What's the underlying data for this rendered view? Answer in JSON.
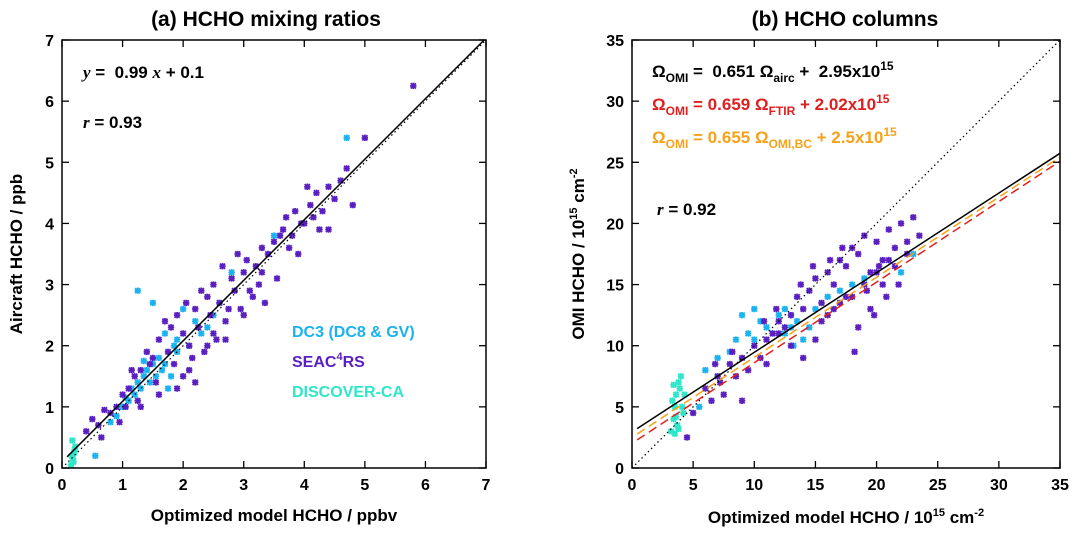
{
  "colors": {
    "seac4rs": "#5a1fc0",
    "dc3": "#1ab2f0",
    "discover_ca": "#2ee6c8",
    "fit_black": "#000000",
    "fit_ftir": "#e02020",
    "fit_omi_bc": "#f5a21a"
  },
  "chart_data": [
    {
      "type": "scatter",
      "title": "(a) HCHO mixing ratios",
      "xlabel": "Optimized model HCHO / ppbv",
      "ylabel": "Aircraft HCHO / ppb",
      "xlim": [
        0,
        7
      ],
      "ylim": [
        0,
        7
      ],
      "xticks": [
        "0",
        "1",
        "2",
        "3",
        "4",
        "5",
        "6",
        "7"
      ],
      "yticks": [
        "0",
        "1",
        "2",
        "3",
        "4",
        "5",
        "6",
        "7"
      ],
      "fit_text": {
        "y": "y",
        "eq": " =  0.99 ",
        "x": "x",
        "tail": " + 0.1"
      },
      "r_text": {
        "r": "r",
        "val": " = 0.93"
      },
      "fit_line": {
        "slope": 0.99,
        "intercept": 0.1
      },
      "one_to_one": true,
      "legend": [
        {
          "label": "DC3 (DC8 & GV)",
          "color_key": "dc3"
        },
        {
          "label_main": "SEAC",
          "label_sup": "4",
          "label_tail": "RS",
          "color_key": "seac4rs"
        },
        {
          "label": "DISCOVER-CA",
          "color_key": "discover_ca"
        }
      ],
      "series": [
        {
          "name": "DC3 (DC8 & GV)",
          "color_key": "dc3",
          "x": [
            0.55,
            0.8,
            0.9,
            1.0,
            1.1,
            1.15,
            1.2,
            1.25,
            1.3,
            1.35,
            1.4,
            1.45,
            1.5,
            1.55,
            1.6,
            1.65,
            1.7,
            1.75,
            1.8,
            1.85,
            1.9,
            2.0,
            2.1,
            2.2,
            2.3,
            2.4,
            2.5,
            1.25,
            1.5,
            1.7,
            1.9,
            2.6,
            2.8,
            3.5,
            4.7,
            1.05,
            1.35
          ],
          "y": [
            0.2,
            0.75,
            0.85,
            1.0,
            1.1,
            1.3,
            1.2,
            1.4,
            1.3,
            1.5,
            1.6,
            1.4,
            1.7,
            1.5,
            1.8,
            1.6,
            1.7,
            1.3,
            1.5,
            2.0,
            2.1,
            2.6,
            2.0,
            2.4,
            2.2,
            2.3,
            2.5,
            2.9,
            2.7,
            2.2,
            1.9,
            2.7,
            3.2,
            3.8,
            5.4,
            1.15,
            1.75
          ]
        },
        {
          "name": "SEAC4RS",
          "color_key": "seac4rs",
          "x": [
            0.4,
            0.5,
            0.6,
            0.7,
            0.8,
            0.9,
            1.0,
            1.05,
            1.1,
            1.2,
            1.25,
            1.3,
            1.4,
            1.5,
            1.6,
            1.7,
            1.75,
            1.8,
            1.9,
            2.0,
            2.05,
            2.1,
            2.2,
            2.25,
            2.3,
            2.4,
            2.45,
            2.5,
            2.6,
            2.65,
            2.7,
            2.8,
            2.85,
            2.9,
            3.0,
            3.05,
            3.1,
            3.2,
            3.25,
            3.3,
            3.4,
            3.5,
            3.6,
            3.65,
            3.7,
            3.8,
            3.85,
            3.9,
            4.0,
            4.1,
            4.15,
            4.2,
            4.3,
            4.4,
            4.5,
            4.6,
            4.7,
            4.8,
            5.0,
            5.8,
            0.65,
            0.95,
            1.15,
            1.45,
            1.55,
            1.85,
            2.15,
            2.35,
            2.55,
            2.75,
            2.95,
            3.15,
            3.35,
            3.55,
            3.75,
            3.95,
            4.25,
            4.05,
            2.0,
            2.4,
            2.1,
            1.6,
            3.0,
            3.3,
            2.7,
            1.3,
            1.9,
            2.5,
            2.2,
            4.4
          ],
          "y": [
            0.6,
            0.8,
            0.7,
            0.95,
            0.9,
            1.0,
            1.2,
            1.0,
            1.3,
            1.5,
            1.1,
            1.6,
            1.9,
            1.8,
            2.1,
            2.4,
            1.9,
            2.3,
            2.5,
            2.2,
            2.7,
            2.0,
            2.6,
            2.3,
            2.9,
            2.8,
            2.5,
            3.0,
            2.7,
            3.3,
            2.4,
            3.1,
            2.9,
            3.5,
            3.2,
            3.4,
            2.9,
            3.3,
            3.0,
            3.6,
            3.5,
            3.7,
            3.8,
            3.9,
            4.1,
            3.8,
            4.2,
            3.5,
            4.0,
            4.3,
            4.1,
            4.5,
            4.2,
            4.6,
            4.4,
            4.7,
            4.9,
            4.3,
            5.4,
            6.25,
            0.5,
            0.75,
            1.6,
            1.7,
            1.4,
            1.7,
            1.8,
            1.9,
            2.1,
            2.6,
            2.6,
            2.8,
            2.7,
            3.1,
            3.6,
            4.0,
            3.9,
            4.6,
            1.5,
            2.0,
            1.6,
            1.2,
            2.5,
            3.2,
            2.1,
            1.0,
            1.3,
            2.2,
            1.4,
            3.9
          ]
        },
        {
          "name": "DISCOVER-CA",
          "color_key": "discover_ca",
          "x": [
            0.15,
            0.18,
            0.2,
            0.22,
            0.17,
            0.19,
            0.21,
            0.16
          ],
          "y": [
            0.05,
            0.15,
            0.25,
            0.35,
            0.45,
            0.1,
            0.3,
            0.2
          ]
        }
      ]
    },
    {
      "type": "scatter",
      "title": "(b) HCHO columns",
      "xlabel_main": "Optimized model HCHO / 10",
      "xlabel_sup": "15",
      "xlabel_mid": " cm",
      "xlabel_sup2": "-2",
      "ylabel_main": "OMI HCHO / 10",
      "ylabel_sup": "15",
      "ylabel_mid": " cm",
      "ylabel_sup2": "-2",
      "xlim": [
        0,
        35
      ],
      "ylim": [
        0,
        35
      ],
      "xticks": [
        "0",
        "5",
        "10",
        "15",
        "20",
        "25",
        "30",
        "35"
      ],
      "yticks": [
        "0",
        "5",
        "10",
        "15",
        "20",
        "25",
        "30",
        "35"
      ],
      "fits": [
        {
          "omega": "Ω",
          "sub1": "OMI",
          "eq": " =  0.651 ",
          "omega2": "Ω",
          "sub2": "airc",
          "tail": " +  2.95x10",
          "sup": "15",
          "color_key": "fit_black",
          "slope": 0.651,
          "intercept": 2.95,
          "style": "solid"
        },
        {
          "omega": "Ω",
          "sub1": "OMI",
          "eq": " = 0.659 ",
          "omega2": "Ω",
          "sub2": "FTIR",
          "tail": " + 2.02x10",
          "sup": "15",
          "color_key": "fit_ftir",
          "slope": 0.659,
          "intercept": 2.02,
          "style": "dashed"
        },
        {
          "omega": "Ω",
          "sub1": "OMI",
          "eq": " = 0.655 ",
          "omega2": "Ω",
          "sub2": "OMI,BC",
          "tail": " + 2.5x10",
          "sup": "15",
          "color_key": "fit_omi_bc",
          "slope": 0.655,
          "intercept": 2.5,
          "style": "dashed"
        }
      ],
      "r_text": {
        "r": "r",
        "val": " = 0.92"
      },
      "one_to_one": true,
      "series": [
        {
          "name": "DC3 (DC8 & GV)",
          "color_key": "dc3",
          "x": [
            5.5,
            6.0,
            7.0,
            8.0,
            9.0,
            9.5,
            10.0,
            10.5,
            11.0,
            11.5,
            12.0,
            12.5,
            13.0,
            13.5,
            14.0,
            14.5,
            15.0,
            16.0,
            17.0,
            18.0,
            19.0,
            8.5,
            10.0,
            13.0,
            22.0,
            23.0,
            12.5,
            13.2
          ],
          "y": [
            5.0,
            8.0,
            9.0,
            9.5,
            12.5,
            11.0,
            10.5,
            12.0,
            11.5,
            11.0,
            12.5,
            13.0,
            11.5,
            12.0,
            10.5,
            11.5,
            13.0,
            14.0,
            14.5,
            15.0,
            15.5,
            10.5,
            13.0,
            12.5,
            16.0,
            17.5,
            11.0,
            10.0
          ]
        },
        {
          "name": "SEAC4RS",
          "color_key": "seac4rs",
          "x": [
            5.0,
            6.0,
            6.5,
            7.0,
            7.5,
            8.0,
            8.5,
            9.0,
            9.5,
            10.0,
            10.5,
            11.0,
            11.5,
            12.0,
            12.5,
            13.0,
            13.5,
            14.0,
            14.5,
            15.0,
            15.5,
            16.0,
            16.5,
            17.0,
            17.5,
            18.0,
            18.5,
            19.0,
            19.5,
            20.0,
            20.5,
            21.0,
            21.5,
            22.0,
            22.5,
            23.0,
            23.5,
            4.5,
            16.0,
            17.0,
            18.0,
            19.0,
            20.0,
            21.0,
            18.5,
            19.5,
            17.5,
            16.5,
            15.5,
            20.5,
            21.5,
            22.5,
            14.0,
            13.0,
            9.0,
            11.0,
            12.0,
            15.0,
            18.2,
            19.8,
            20.8,
            21.8,
            17.2,
            16.2,
            14.8,
            13.8,
            11.8,
            10.8,
            8.2,
            7.2,
            6.8,
            19.2,
            20.2
          ],
          "y": [
            4.5,
            6.5,
            5.5,
            7.5,
            6.0,
            8.5,
            7.5,
            9.0,
            8.0,
            10.0,
            9.0,
            10.5,
            11.0,
            12.0,
            11.5,
            12.5,
            14.0,
            13.0,
            14.5,
            15.5,
            13.5,
            16.0,
            15.0,
            17.0,
            16.5,
            18.0,
            17.5,
            19.0,
            16.0,
            18.5,
            17.0,
            19.5,
            18.0,
            20.0,
            17.5,
            20.5,
            19.0,
            2.5,
            12.5,
            13.5,
            14.0,
            15.0,
            16.0,
            17.0,
            11.5,
            13.0,
            14.0,
            13.0,
            12.0,
            15.0,
            16.5,
            18.5,
            9.0,
            10.0,
            5.5,
            8.5,
            11.0,
            10.5,
            9.5,
            12.5,
            14.0,
            15.0,
            18.0,
            17.0,
            16.5,
            15.0,
            13.0,
            12.0,
            9.5,
            7.0,
            8.5,
            14.5,
            16.5
          ]
        },
        {
          "name": "DISCOVER-CA",
          "color_key": "discover_ca",
          "x": [
            3.2,
            3.4,
            3.5,
            3.6,
            3.8,
            4.0,
            4.2,
            3.3,
            3.7,
            3.9,
            4.1,
            3.5,
            3.6,
            3.8,
            4.3,
            3.4
          ],
          "y": [
            3.0,
            4.0,
            5.0,
            6.0,
            7.0,
            7.5,
            4.5,
            5.5,
            3.5,
            6.5,
            5.0,
            2.8,
            4.2,
            3.2,
            6.0,
            6.8
          ]
        }
      ]
    }
  ]
}
